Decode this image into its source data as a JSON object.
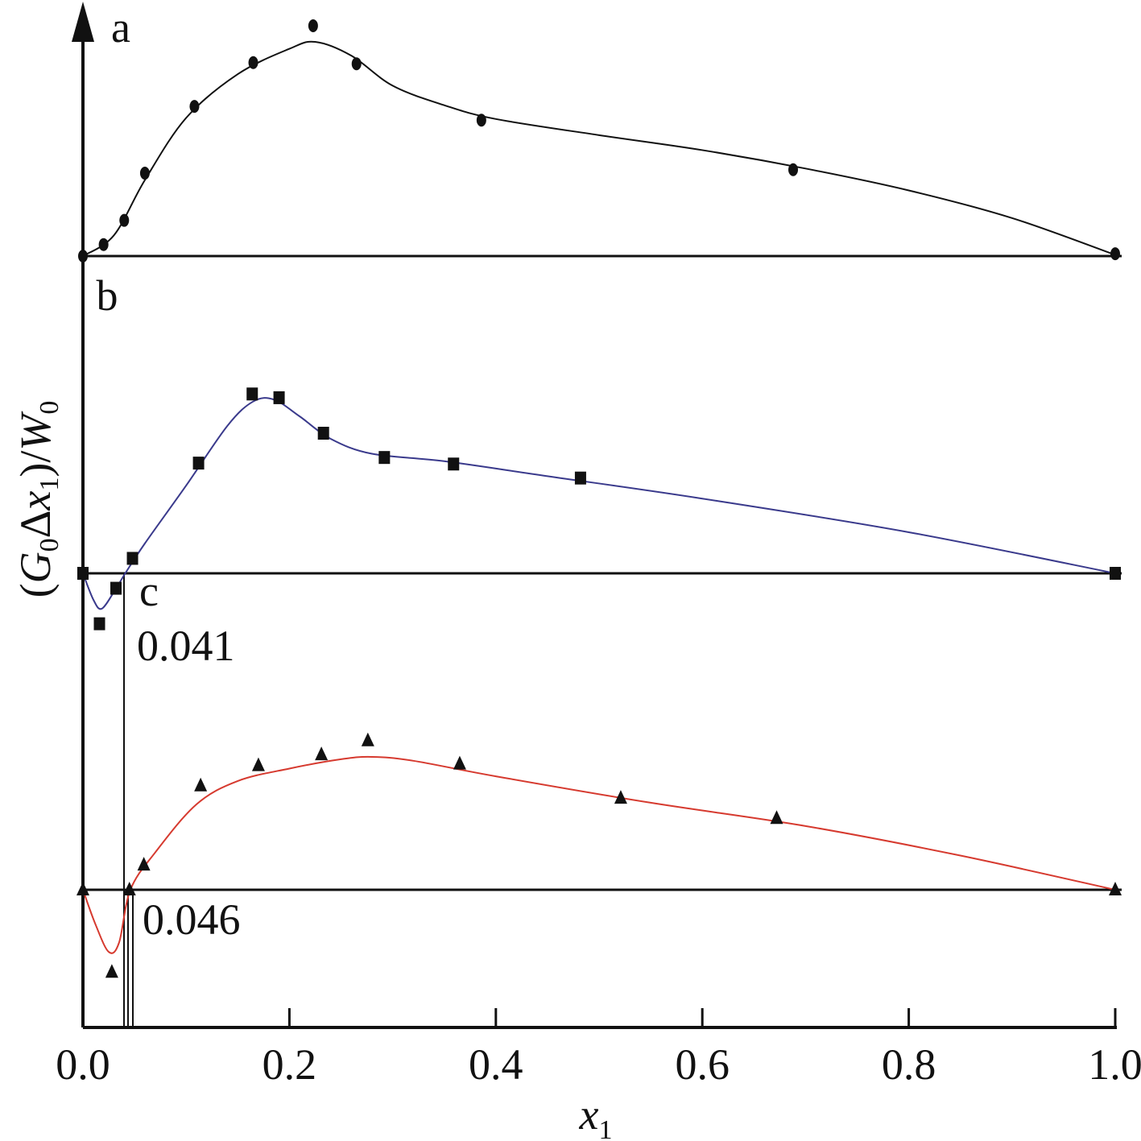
{
  "chart_data": {
    "type": "line",
    "xlabel": "x1",
    "ylabel": "(G0Δx1)/W0",
    "xlim": [
      0.0,
      1.0
    ],
    "x_ticks": [
      "0.0",
      "0.2",
      "0.4",
      "0.6",
      "0.8",
      "1.0"
    ],
    "grid": false,
    "panels": [
      {
        "label": "a",
        "marker": "circle",
        "line_color": "#111111",
        "ylim": [
          0,
          1.0
        ],
        "points": [
          [
            0.0,
            0.0
          ],
          [
            0.02,
            0.05
          ],
          [
            0.04,
            0.155
          ],
          [
            0.06,
            0.36
          ],
          [
            0.108,
            0.65
          ],
          [
            0.165,
            0.84
          ],
          [
            0.223,
            1.0
          ],
          [
            0.265,
            0.835
          ],
          [
            0.386,
            0.59
          ],
          [
            0.688,
            0.375
          ],
          [
            1.0,
            0.01
          ]
        ],
        "curve": [
          [
            0.0,
            0.0
          ],
          [
            0.03,
            0.09
          ],
          [
            0.06,
            0.33
          ],
          [
            0.1,
            0.6
          ],
          [
            0.15,
            0.79
          ],
          [
            0.2,
            0.9
          ],
          [
            0.225,
            0.93
          ],
          [
            0.26,
            0.87
          ],
          [
            0.3,
            0.74
          ],
          [
            0.35,
            0.655
          ],
          [
            0.4,
            0.595
          ],
          [
            0.5,
            0.525
          ],
          [
            0.6,
            0.46
          ],
          [
            0.7,
            0.38
          ],
          [
            0.8,
            0.285
          ],
          [
            0.9,
            0.165
          ],
          [
            1.0,
            0.005
          ]
        ]
      },
      {
        "label": "b",
        "marker": "square",
        "line_color": "#3a3a8c",
        "ylim": [
          -0.3,
          1.0
        ],
        "points": [
          [
            0.0,
            0.0
          ],
          [
            0.016,
            -0.27
          ],
          [
            0.032,
            -0.08
          ],
          [
            0.048,
            0.08
          ],
          [
            0.112,
            0.59
          ],
          [
            0.164,
            0.96
          ],
          [
            0.19,
            0.94
          ],
          [
            0.233,
            0.75
          ],
          [
            0.292,
            0.62
          ],
          [
            0.359,
            0.585
          ],
          [
            0.482,
            0.51
          ],
          [
            1.0,
            0.0
          ]
        ],
        "curve": [
          [
            0.0,
            0.0
          ],
          [
            0.01,
            -0.14
          ],
          [
            0.018,
            -0.19
          ],
          [
            0.03,
            -0.1
          ],
          [
            0.041,
            0.0
          ],
          [
            0.06,
            0.16
          ],
          [
            0.1,
            0.47
          ],
          [
            0.14,
            0.79
          ],
          [
            0.165,
            0.92
          ],
          [
            0.185,
            0.93
          ],
          [
            0.21,
            0.84
          ],
          [
            0.24,
            0.72
          ],
          [
            0.28,
            0.64
          ],
          [
            0.35,
            0.6
          ],
          [
            0.45,
            0.52
          ],
          [
            0.6,
            0.4
          ],
          [
            0.8,
            0.22
          ],
          [
            1.0,
            0.0
          ]
        ]
      },
      {
        "label": "c",
        "marker": "triangle",
        "line_color": "#d63a2f",
        "ylim": [
          -0.55,
          1.0
        ],
        "points": [
          [
            0.0,
            0.0
          ],
          [
            0.028,
            -0.53
          ],
          [
            0.045,
            0.0
          ],
          [
            0.059,
            0.16
          ],
          [
            0.114,
            0.67
          ],
          [
            0.17,
            0.8
          ],
          [
            0.231,
            0.87
          ],
          [
            0.276,
            0.96
          ],
          [
            0.365,
            0.81
          ],
          [
            0.521,
            0.59
          ],
          [
            0.672,
            0.46
          ],
          [
            1.0,
            0.0
          ]
        ],
        "curve": [
          [
            0.0,
            0.0
          ],
          [
            0.012,
            -0.22
          ],
          [
            0.025,
            -0.4
          ],
          [
            0.035,
            -0.34
          ],
          [
            0.046,
            0.0
          ],
          [
            0.07,
            0.24
          ],
          [
            0.11,
            0.55
          ],
          [
            0.15,
            0.7
          ],
          [
            0.2,
            0.78
          ],
          [
            0.25,
            0.84
          ],
          [
            0.28,
            0.855
          ],
          [
            0.32,
            0.83
          ],
          [
            0.4,
            0.73
          ],
          [
            0.55,
            0.56
          ],
          [
            0.7,
            0.41
          ],
          [
            0.85,
            0.22
          ],
          [
            1.0,
            0.0
          ]
        ]
      }
    ],
    "annotations": [
      "0.041",
      "0.046"
    ]
  }
}
